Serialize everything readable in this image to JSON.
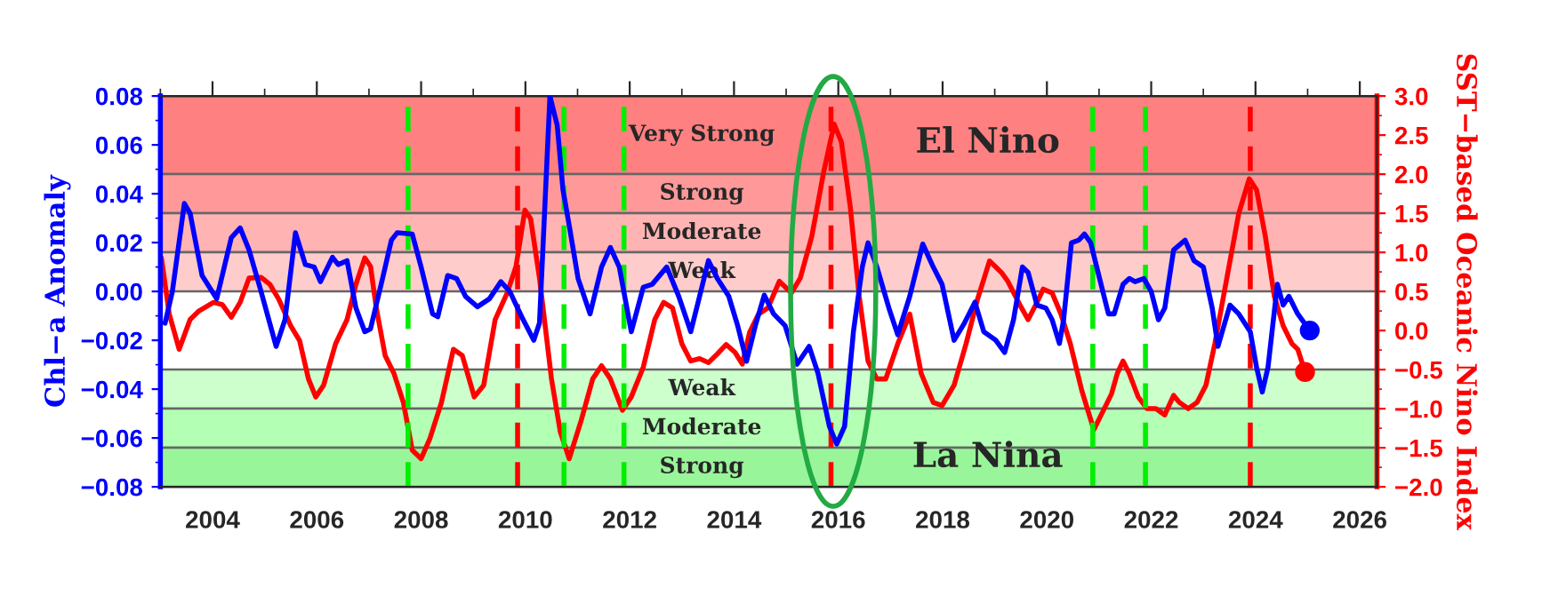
{
  "chart_data": {
    "type": "line",
    "ylabel": "Chl−a Anomaly",
    "y2label": "SST−based Oceanic Nino Index",
    "xlim": [
      2003.0,
      2026.33
    ],
    "xticks": [
      2004,
      2006,
      2008,
      2010,
      2012,
      2014,
      2016,
      2018,
      2020,
      2022,
      2024,
      2026
    ],
    "ylim": [
      -0.08,
      0.08
    ],
    "yticks": [
      {
        "value": -0.08,
        "label": "−0.08"
      },
      {
        "value": -0.06,
        "label": "−0.06"
      },
      {
        "value": -0.04,
        "label": "−0.04"
      },
      {
        "value": -0.02,
        "label": "−0.02"
      },
      {
        "value": 0.0,
        "label": "0.00"
      },
      {
        "value": 0.02,
        "label": "0.02"
      },
      {
        "value": 0.04,
        "label": "0.04"
      },
      {
        "value": 0.06,
        "label": "0.06"
      },
      {
        "value": 0.08,
        "label": "0.08"
      }
    ],
    "y2lim": [
      -2.0,
      3.0
    ],
    "y2ticks": [
      {
        "value": -2.0,
        "label": "−2.0"
      },
      {
        "value": -1.5,
        "label": "−1.5"
      },
      {
        "value": -1.0,
        "label": "−1.0"
      },
      {
        "value": -0.5,
        "label": "−0.5"
      },
      {
        "value": 0.0,
        "label": "0.0"
      },
      {
        "value": 0.5,
        "label": "0.5"
      },
      {
        "value": 1.0,
        "label": "1.0"
      },
      {
        "value": 1.5,
        "label": "1.5"
      },
      {
        "value": 2.0,
        "label": "2.0"
      },
      {
        "value": 2.5,
        "label": "2.5"
      },
      {
        "value": 3.0,
        "label": "3.0"
      }
    ],
    "grid": false,
    "legend": false,
    "annotations": [
      "El Nino",
      "La Nina"
    ],
    "bands": [
      {
        "axis": "y2",
        "from": 2.0,
        "to": 3.0,
        "label": "Very Strong",
        "color": "#ff8080"
      },
      {
        "axis": "y2",
        "from": 1.5,
        "to": 2.0,
        "label": "Strong",
        "color": "#ff9999"
      },
      {
        "axis": "y2",
        "from": 1.0,
        "to": 1.5,
        "label": "Moderate",
        "color": "#ffb3b3"
      },
      {
        "axis": "y2",
        "from": 0.5,
        "to": 1.0,
        "label": "Weak",
        "color": "#ffcccc"
      },
      {
        "axis": "y2",
        "from": -1.0,
        "to": -0.5,
        "label": "Weak",
        "color": "#ccffcc"
      },
      {
        "axis": "y2",
        "from": -1.5,
        "to": -1.0,
        "label": "Moderate",
        "color": "#b3ffb3"
      },
      {
        "axis": "y2",
        "from": -2.0,
        "to": -1.5,
        "label": "Strong",
        "color": "#99f599"
      }
    ],
    "ref_lines": [
      {
        "axis": "x",
        "value": 2007.75,
        "color": "#00ee00",
        "line_style": "dashed"
      },
      {
        "axis": "x",
        "value": 2009.85,
        "color": "#ff0000",
        "line_style": "dashed"
      },
      {
        "axis": "x",
        "value": 2010.74,
        "color": "#00ee00",
        "line_style": "dashed"
      },
      {
        "axis": "x",
        "value": 2011.89,
        "color": "#00ee00",
        "line_style": "dashed"
      },
      {
        "axis": "x",
        "value": 2015.86,
        "color": "#ff0000",
        "line_style": "dashed"
      },
      {
        "axis": "x",
        "value": 2020.88,
        "color": "#00ee00",
        "line_style": "dashed"
      },
      {
        "axis": "x",
        "value": 2021.89,
        "color": "#00ee00",
        "line_style": "dashed"
      },
      {
        "axis": "x",
        "value": 2023.9,
        "color": "#ff0000",
        "line_style": "dashed"
      }
    ],
    "series": [
      {
        "axis": "y",
        "color": "#0000ff",
        "x": [
          2003.09,
          2003.23,
          2003.46,
          2003.57,
          2003.8,
          2004.08,
          2004.36,
          2004.53,
          2004.7,
          2004.93,
          2005.22,
          2005.39,
          2005.59,
          2005.78,
          2005.95,
          2006.07,
          2006.3,
          2006.41,
          2006.58,
          2006.75,
          2006.92,
          2007.03,
          2007.26,
          2007.43,
          2007.54,
          2007.83,
          2008.0,
          2008.22,
          2008.32,
          2008.51,
          2008.68,
          2008.85,
          2009.08,
          2009.31,
          2009.53,
          2009.7,
          2009.93,
          2010.16,
          2010.27,
          2010.47,
          2010.61,
          2010.72,
          2010.84,
          2011.01,
          2011.24,
          2011.46,
          2011.63,
          2011.8,
          2012.03,
          2012.26,
          2012.43,
          2012.71,
          2012.94,
          2013.17,
          2013.34,
          2013.51,
          2013.68,
          2013.9,
          2014.07,
          2014.24,
          2014.41,
          2014.58,
          2014.76,
          2014.98,
          2015.21,
          2015.44,
          2015.61,
          2015.83,
          2015.97,
          2016.12,
          2016.29,
          2016.46,
          2016.57,
          2016.74,
          2016.97,
          2017.14,
          2017.37,
          2017.62,
          2017.82,
          2017.99,
          2018.22,
          2018.42,
          2018.62,
          2018.79,
          2019.02,
          2019.19,
          2019.36,
          2019.53,
          2019.64,
          2019.81,
          2019.98,
          2020.1,
          2020.24,
          2020.32,
          2020.47,
          2020.61,
          2020.72,
          2020.84,
          2021.01,
          2021.18,
          2021.29,
          2021.46,
          2021.58,
          2021.69,
          2021.86,
          2022.0,
          2022.14,
          2022.26,
          2022.43,
          2022.65,
          2022.82,
          2023.0,
          2023.17,
          2023.28,
          2023.51,
          2023.68,
          2023.9,
          2024.02,
          2024.13,
          2024.24,
          2024.42,
          2024.53,
          2024.64,
          2024.81,
          2025.04
        ],
        "values": [
          -0.013,
          0.0,
          0.036,
          0.032,
          0.0065,
          -0.003,
          0.022,
          0.026,
          0.017,
          0.0,
          -0.0225,
          -0.0116,
          0.024,
          0.011,
          0.01,
          0.004,
          0.014,
          0.011,
          0.0126,
          -0.0068,
          -0.0165,
          -0.0153,
          0.0053,
          0.021,
          0.024,
          0.0235,
          0.01,
          -0.0092,
          -0.0104,
          0.0065,
          0.0053,
          -0.002,
          -0.0063,
          -0.003,
          0.004,
          0.0,
          -0.0104,
          -0.02,
          -0.0129,
          0.08,
          0.068,
          0.0417,
          0.027,
          0.0053,
          -0.0092,
          0.01,
          0.018,
          0.01,
          -0.0165,
          0.0017,
          0.0029,
          0.01,
          -0.002,
          -0.0165,
          -0.002,
          0.0126,
          0.0053,
          -0.002,
          -0.014,
          -0.0286,
          -0.014,
          -0.0015,
          -0.0092,
          -0.014,
          -0.0298,
          -0.0225,
          -0.0335,
          -0.0553,
          -0.0625,
          -0.0553,
          -0.0165,
          0.01,
          0.0199,
          0.01,
          -0.0068,
          -0.0177,
          -0.002,
          0.0194,
          0.01,
          0.0029,
          -0.02,
          -0.0129,
          -0.0044,
          -0.0165,
          -0.02,
          -0.025,
          -0.0116,
          0.01,
          0.0078,
          -0.0056,
          -0.0068,
          -0.0116,
          -0.0213,
          -0.0116,
          0.0199,
          0.021,
          0.0235,
          0.0199,
          0.0053,
          -0.0092,
          -0.0092,
          0.0029,
          0.0053,
          0.004,
          0.0053,
          0.0,
          -0.0116,
          -0.0068,
          0.017,
          0.021,
          0.0126,
          0.01,
          -0.0068,
          -0.0225,
          -0.0056,
          -0.0092,
          -0.0165,
          -0.031,
          -0.0412,
          -0.031,
          0.0029,
          -0.0056,
          -0.002,
          -0.0092,
          -0.016
        ]
      },
      {
        "axis": "y2",
        "color": "#ff0000",
        "x": [
          2003.02,
          2003.17,
          2003.36,
          2003.57,
          2003.74,
          2004.02,
          2004.19,
          2004.36,
          2004.53,
          2004.7,
          2004.93,
          2005.1,
          2005.27,
          2005.5,
          2005.67,
          2005.84,
          2005.98,
          2006.13,
          2006.36,
          2006.58,
          2006.75,
          2006.92,
          2007.03,
          2007.14,
          2007.31,
          2007.48,
          2007.66,
          2007.83,
          2008.0,
          2008.17,
          2008.39,
          2008.62,
          2008.79,
          2009.02,
          2009.2,
          2009.42,
          2009.65,
          2009.82,
          2009.99,
          2010.1,
          2010.27,
          2010.5,
          2010.67,
          2010.84,
          2011.07,
          2011.29,
          2011.46,
          2011.63,
          2011.86,
          2012.03,
          2012.26,
          2012.48,
          2012.65,
          2012.82,
          2013.0,
          2013.17,
          2013.34,
          2013.51,
          2013.68,
          2013.85,
          2014.02,
          2014.16,
          2014.3,
          2014.47,
          2014.65,
          2014.87,
          2015.1,
          2015.27,
          2015.49,
          2015.72,
          2015.92,
          2016.06,
          2016.23,
          2016.4,
          2016.57,
          2016.74,
          2016.91,
          2017.14,
          2017.37,
          2017.59,
          2017.82,
          2017.99,
          2018.22,
          2018.45,
          2018.67,
          2018.9,
          2019.13,
          2019.25,
          2019.48,
          2019.64,
          2019.81,
          2019.93,
          2020.1,
          2020.27,
          2020.45,
          2020.67,
          2020.9,
          2021.07,
          2021.24,
          2021.35,
          2021.46,
          2021.58,
          2021.75,
          2021.92,
          2022.09,
          2022.26,
          2022.43,
          2022.54,
          2022.71,
          2022.88,
          2023.05,
          2023.22,
          2023.45,
          2023.68,
          2023.88,
          2024.02,
          2024.19,
          2024.36,
          2024.53,
          2024.7,
          2024.81,
          2024.95
        ],
        "values": [
          0.93,
          0.21,
          -0.24,
          0.14,
          0.25,
          0.36,
          0.33,
          0.17,
          0.36,
          0.67,
          0.68,
          0.59,
          0.4,
          0.06,
          -0.13,
          -0.62,
          -0.85,
          -0.7,
          -0.17,
          0.14,
          0.59,
          0.93,
          0.82,
          0.29,
          -0.32,
          -0.55,
          -0.92,
          -1.53,
          -1.64,
          -1.38,
          -0.92,
          -0.24,
          -0.32,
          -0.85,
          -0.7,
          0.14,
          0.48,
          0.82,
          1.54,
          1.43,
          0.67,
          -0.62,
          -1.3,
          -1.64,
          -1.15,
          -0.62,
          -0.45,
          -0.62,
          -1.02,
          -0.85,
          -0.47,
          0.14,
          0.36,
          0.29,
          -0.17,
          -0.39,
          -0.36,
          -0.41,
          -0.3,
          -0.18,
          -0.28,
          -0.43,
          -0.02,
          0.21,
          0.29,
          0.63,
          0.48,
          0.67,
          1.2,
          2.03,
          2.64,
          2.41,
          1.58,
          0.44,
          -0.39,
          -0.62,
          -0.62,
          -0.17,
          0.21,
          -0.55,
          -0.92,
          -0.96,
          -0.7,
          -0.17,
          0.4,
          0.89,
          0.74,
          0.63,
          0.33,
          0.14,
          0.36,
          0.53,
          0.48,
          0.21,
          -0.17,
          -0.77,
          -1.27,
          -1.04,
          -0.81,
          -0.55,
          -0.39,
          -0.55,
          -0.85,
          -1.0,
          -1.0,
          -1.08,
          -0.83,
          -0.92,
          -1.0,
          -0.92,
          -0.7,
          -0.17,
          0.67,
          1.5,
          1.94,
          1.8,
          1.2,
          0.44,
          0.06,
          -0.17,
          -0.24,
          -0.53
        ]
      },
      {
        "type": "scatter",
        "axis": "y",
        "color": "#0000ff",
        "marker": "circle",
        "x": [
          2025.04
        ],
        "values": [
          -0.016
        ]
      },
      {
        "type": "scatter",
        "axis": "y2",
        "color": "#ff0000",
        "marker": "circle",
        "x": [
          2024.95
        ],
        "values": [
          -0.53
        ]
      }
    ]
  }
}
